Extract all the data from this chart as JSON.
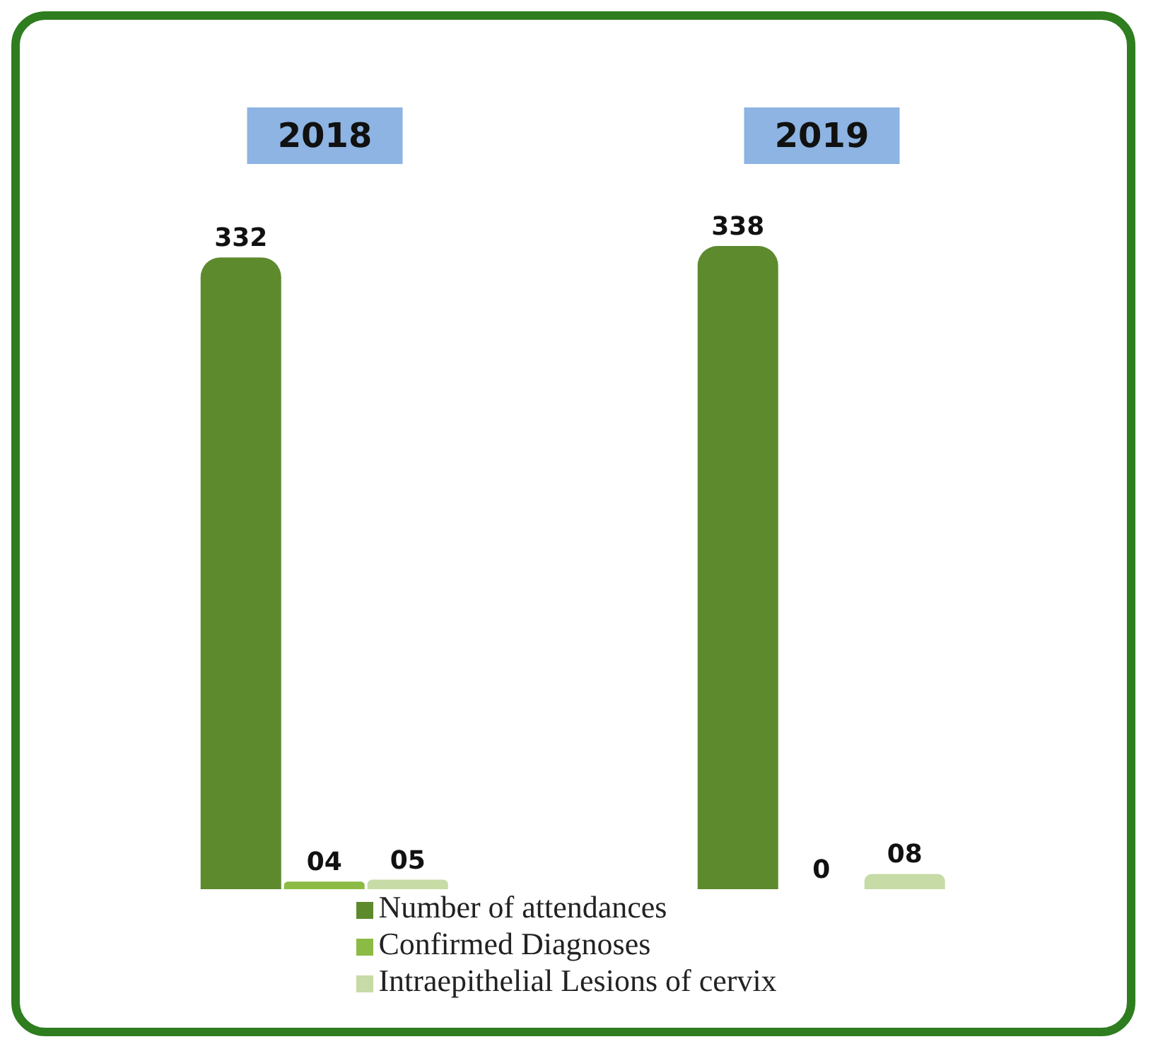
{
  "chart_data": {
    "type": "bar",
    "categories": [
      "2018",
      "2019"
    ],
    "series": [
      {
        "name": "Number of attendances",
        "color": "#5e8a2e",
        "values": [
          332,
          338
        ],
        "value_labels": [
          "332",
          "338"
        ]
      },
      {
        "name": "Confirmed Diagnoses",
        "color": "#8cbb45",
        "values": [
          4,
          0
        ],
        "value_labels": [
          "04",
          "0"
        ]
      },
      {
        "name": "Intraepithelial Lesions of cervix",
        "color": "#c6dba6",
        "values": [
          5,
          8
        ],
        "value_labels": [
          "05",
          "08"
        ]
      }
    ],
    "legend": "bottom",
    "grid": false
  }
}
